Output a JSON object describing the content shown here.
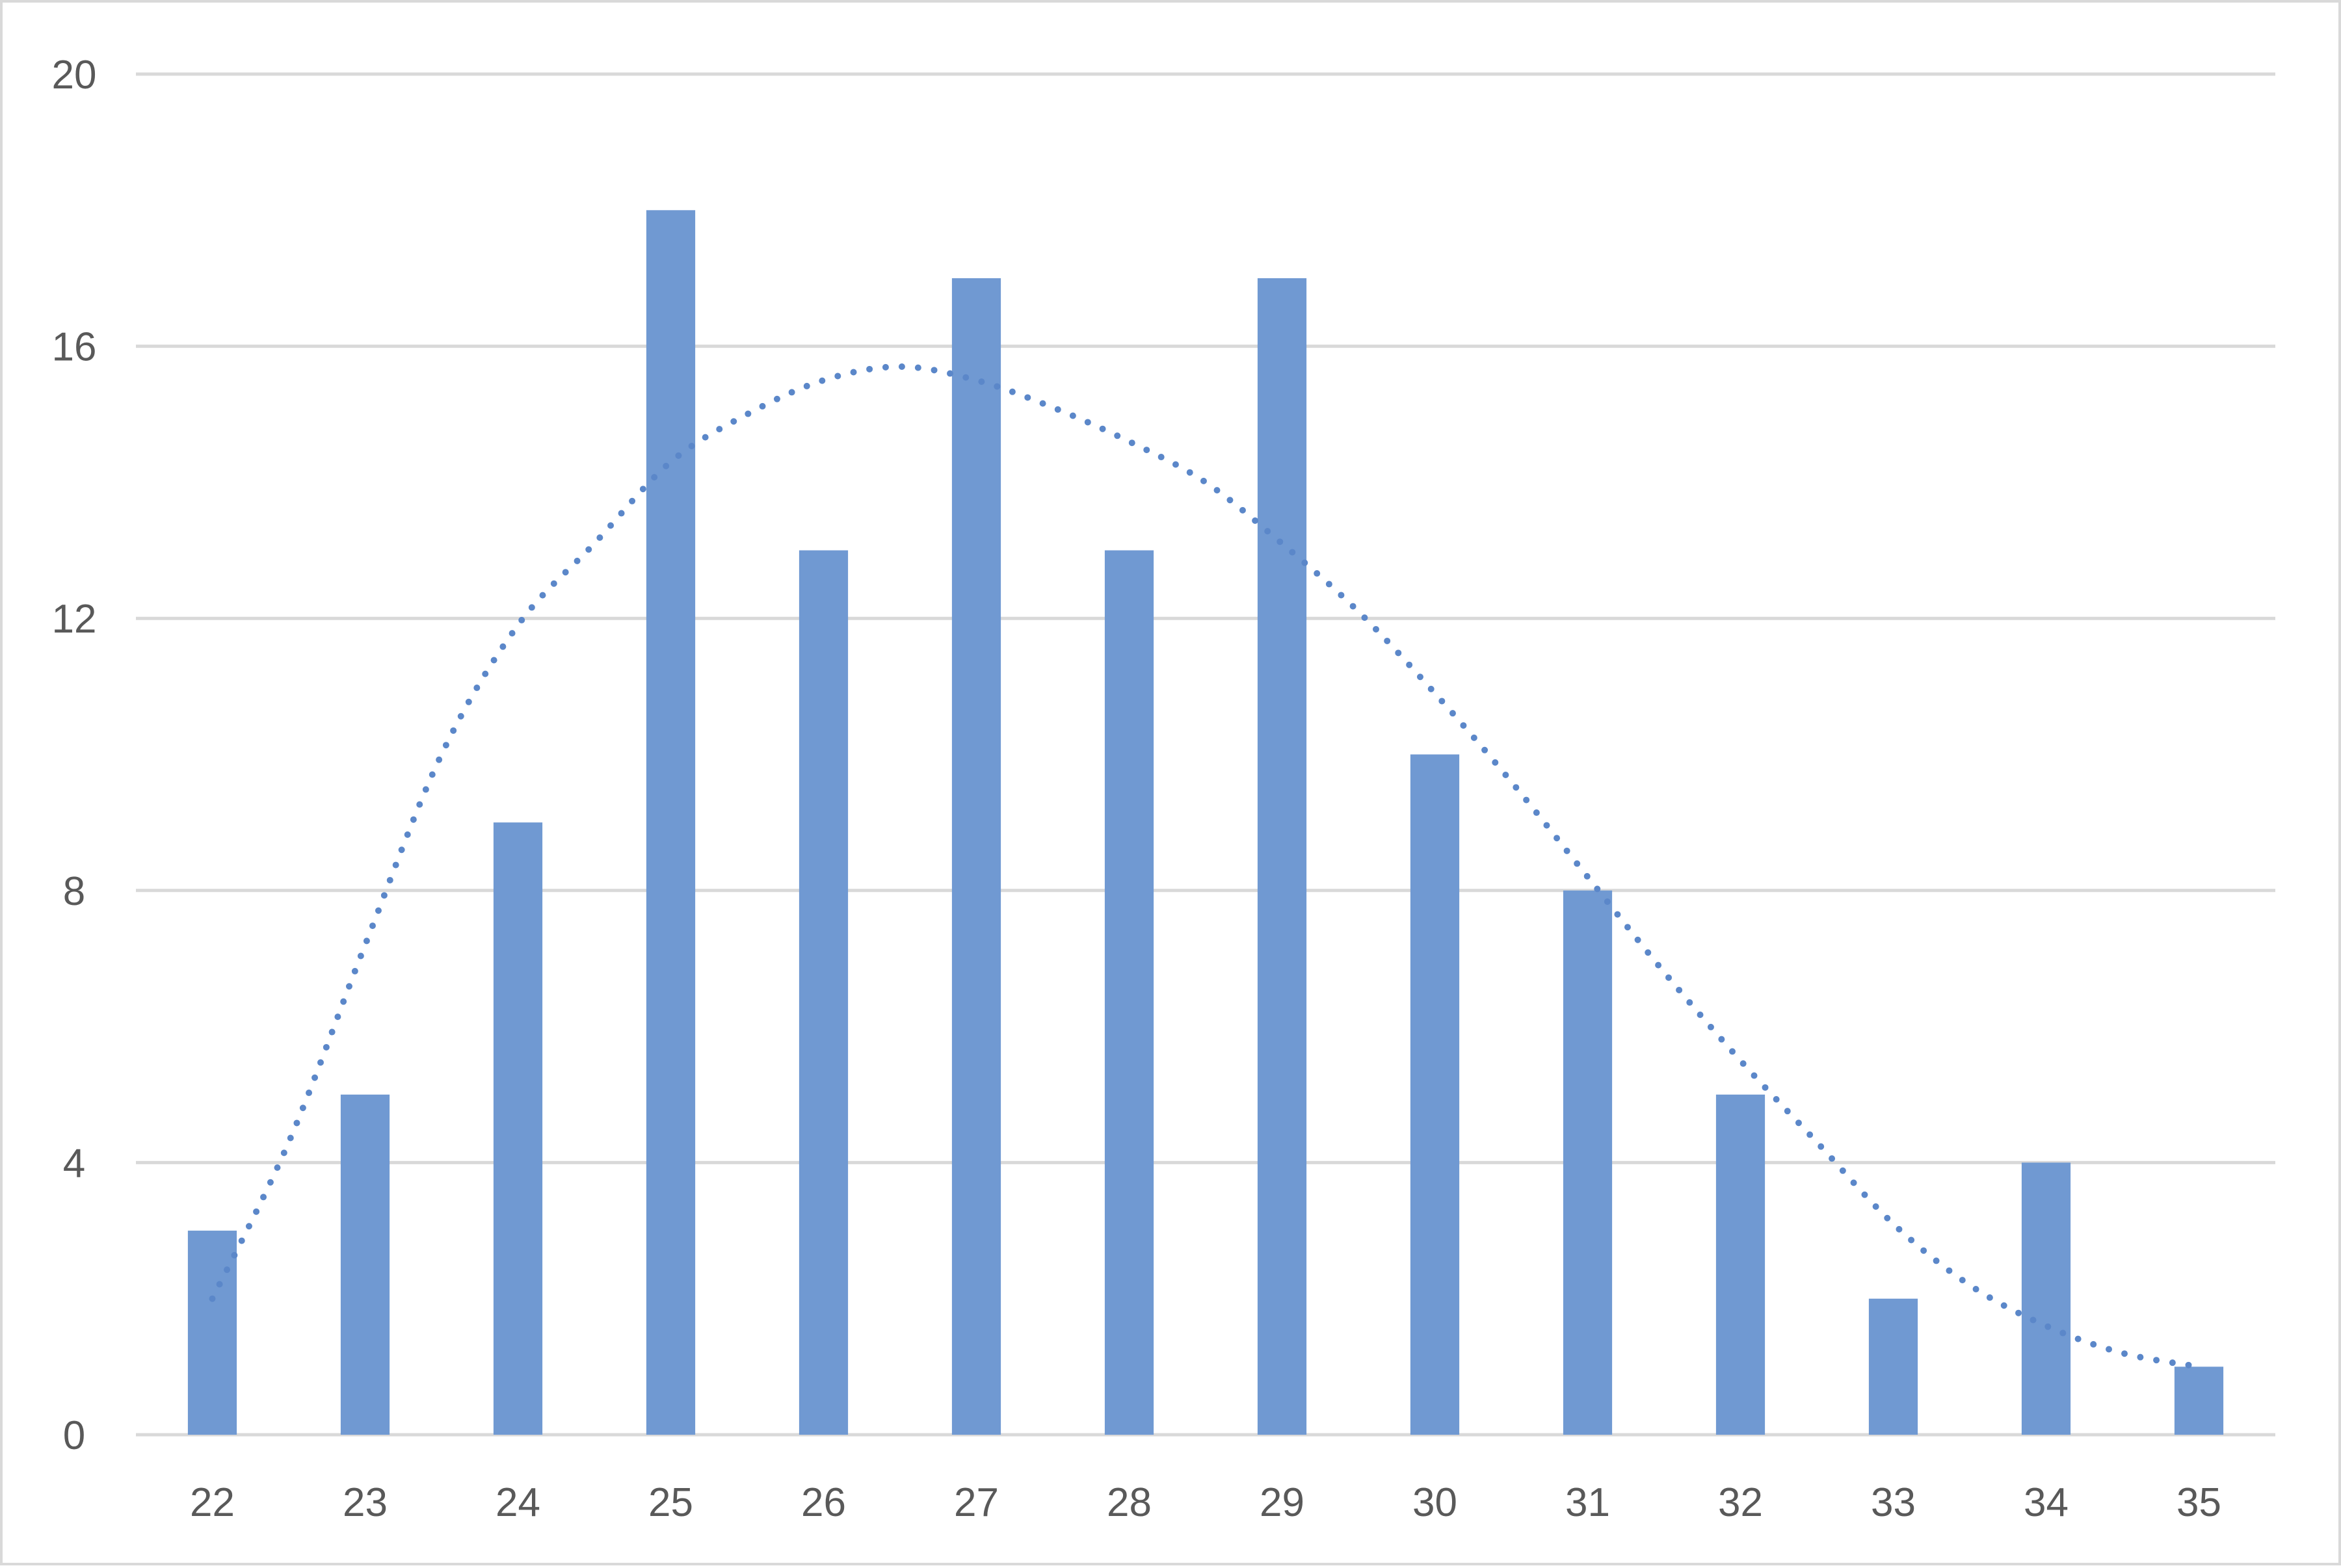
{
  "chart_data": {
    "type": "bar",
    "title": "",
    "xlabel": "",
    "ylabel": "",
    "categories": [
      "22",
      "23",
      "24",
      "25",
      "26",
      "27",
      "28",
      "29",
      "30",
      "31",
      "32",
      "33",
      "34",
      "35"
    ],
    "values": [
      3,
      5,
      9,
      18,
      13,
      17,
      13,
      17,
      10,
      8,
      5,
      2,
      4,
      1
    ],
    "ylim": [
      0,
      20
    ],
    "yticks": [
      0,
      4,
      8,
      12,
      16,
      20
    ],
    "grid": "horizontal",
    "legend": "none",
    "bar_color": "#7099d2",
    "grid_color": "#d9d9d9",
    "trendline": {
      "style": "dotted",
      "type": "polynomial",
      "color": "#5b87c9",
      "points": [
        [
          22,
          2.0
        ],
        [
          22.5,
          4.3
        ],
        [
          23,
          7.2
        ],
        [
          23.5,
          10.0
        ],
        [
          24,
          11.9
        ],
        [
          24.5,
          13.1
        ],
        [
          25,
          14.3
        ],
        [
          25.5,
          15.0
        ],
        [
          26,
          15.5
        ],
        [
          26.5,
          15.7
        ],
        [
          27,
          15.5
        ],
        [
          27.5,
          15.1
        ],
        [
          28,
          14.6
        ],
        [
          28.5,
          14.0
        ],
        [
          29,
          13.1
        ],
        [
          29.5,
          12.1
        ],
        [
          30,
          10.9
        ],
        [
          30.5,
          9.6
        ],
        [
          31,
          8.2
        ],
        [
          31.5,
          6.8
        ],
        [
          32,
          5.5
        ],
        [
          32.5,
          4.3
        ],
        [
          33,
          3.1
        ],
        [
          33.5,
          2.2
        ],
        [
          34,
          1.6
        ],
        [
          34.5,
          1.2
        ],
        [
          35,
          1.0
        ]
      ]
    }
  }
}
